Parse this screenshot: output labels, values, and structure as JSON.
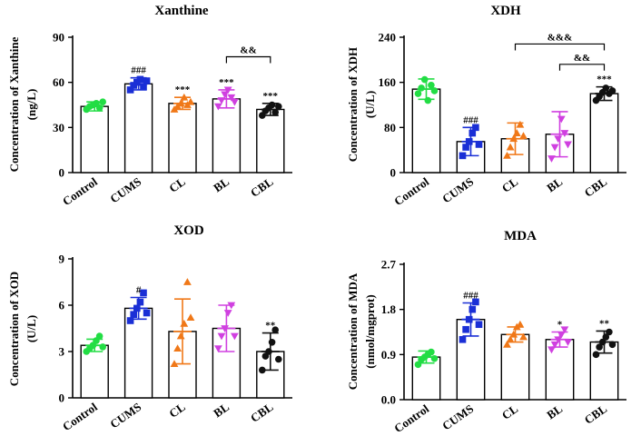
{
  "chart_data": [
    {
      "type": "bar",
      "title": "Xanthine",
      "ylabel_lines": [
        "Concentration of Xanthine",
        "(ng/L)"
      ],
      "categories": [
        "Control",
        "CUMS",
        "CL",
        "BL",
        "CBL"
      ],
      "ylim": [
        0,
        90
      ],
      "yticks": [
        0,
        30,
        60,
        90
      ],
      "ytick_labels": [
        "0",
        "30",
        "60",
        "90"
      ],
      "means": [
        44,
        59,
        46,
        49,
        42
      ],
      "sd": [
        3,
        4,
        4,
        6,
        4
      ],
      "points": [
        [
          42,
          44,
          45,
          46,
          43,
          47
        ],
        [
          55,
          58,
          60,
          62,
          57,
          61
        ],
        [
          42,
          44,
          46,
          50,
          45,
          47
        ],
        [
          44,
          48,
          52,
          55,
          50,
          47
        ],
        [
          38,
          41,
          43,
          45,
          40,
          44
        ]
      ],
      "point_markers": [
        "circle",
        "square",
        "triangle-up",
        "triangle-down",
        "circle"
      ],
      "significance": [
        "",
        "###",
        "***",
        "***",
        "***"
      ],
      "brackets": [
        {
          "from": 3,
          "to": 4,
          "value": 77,
          "label": "&&"
        }
      ]
    },
    {
      "type": "bar",
      "title": "XDH",
      "ylabel_lines": [
        "Concentration of XDH",
        "(U/L)"
      ],
      "categories": [
        "Control",
        "CUMS",
        "CL",
        "BL",
        "CBL"
      ],
      "ylim": [
        0,
        240
      ],
      "yticks": [
        0,
        80,
        160,
        240
      ],
      "ytick_labels": [
        "0",
        "80",
        "160",
        "240"
      ],
      "means": [
        148,
        55,
        60,
        68,
        140
      ],
      "sd": [
        18,
        25,
        28,
        40,
        12
      ],
      "points": [
        [
          140,
          150,
          165,
          128,
          155,
          145
        ],
        [
          30,
          45,
          55,
          70,
          80,
          50
        ],
        [
          30,
          45,
          60,
          70,
          85,
          65
        ],
        [
          25,
          45,
          60,
          95,
          70,
          50
        ],
        [
          128,
          135,
          142,
          150,
          140,
          145
        ]
      ],
      "point_markers": [
        "circle",
        "square",
        "triangle-up",
        "triangle-down",
        "circle"
      ],
      "significance": [
        "",
        "###",
        "",
        "",
        "***"
      ],
      "brackets": [
        {
          "from": 2,
          "to": 4,
          "value": 228,
          "label": "&&&"
        },
        {
          "from": 3,
          "to": 4,
          "value": 192,
          "label": "&&"
        }
      ]
    },
    {
      "type": "bar",
      "title": "XOD",
      "ylabel_lines": [
        "Concentration of XOD",
        "(U/L)"
      ],
      "categories": [
        "Control",
        "CUMS",
        "CL",
        "BL",
        "CBL"
      ],
      "ylim": [
        0,
        9
      ],
      "yticks": [
        0,
        3,
        6,
        9
      ],
      "ytick_labels": [
        "0",
        "3",
        "6",
        "9"
      ],
      "means": [
        3.4,
        5.8,
        4.3,
        4.5,
        3.0
      ],
      "sd": [
        0.4,
        0.7,
        2.1,
        1.5,
        1.2
      ],
      "points": [
        [
          3.0,
          3.2,
          3.4,
          3.7,
          4.0,
          3.3
        ],
        [
          5.0,
          5.4,
          5.8,
          6.2,
          6.8,
          5.5
        ],
        [
          2.2,
          3.2,
          4.0,
          4.8,
          7.5,
          5.2
        ],
        [
          3.2,
          4.0,
          4.5,
          5.5,
          6.0,
          4.0
        ],
        [
          1.8,
          2.7,
          3.0,
          3.6,
          4.4,
          2.5
        ]
      ],
      "point_markers": [
        "circle",
        "square",
        "triangle-up",
        "triangle-down",
        "circle"
      ],
      "significance": [
        "",
        "#",
        "",
        "",
        "**"
      ],
      "brackets": []
    },
    {
      "type": "bar",
      "title": "MDA",
      "ylabel_lines": [
        "Concentration of MDA",
        "(nmol/mgprot)"
      ],
      "categories": [
        "Control",
        "CUMS",
        "CL",
        "BL",
        "CBL"
      ],
      "ylim": [
        0,
        2.7
      ],
      "yticks": [
        0,
        0.9,
        1.8,
        2.7
      ],
      "ytick_labels": [
        "0.0",
        "0.9",
        "1.8",
        "2.7"
      ],
      "means": [
        0.85,
        1.6,
        1.3,
        1.2,
        1.15
      ],
      "sd": [
        0.12,
        0.33,
        0.15,
        0.15,
        0.22
      ],
      "points": [
        [
          0.7,
          0.8,
          0.85,
          0.9,
          0.95,
          0.82
        ],
        [
          1.2,
          1.4,
          1.6,
          1.8,
          1.95,
          1.5
        ],
        [
          1.1,
          1.2,
          1.3,
          1.45,
          1.5,
          1.25
        ],
        [
          1.0,
          1.1,
          1.2,
          1.3,
          1.4,
          1.15
        ],
        [
          0.9,
          1.05,
          1.15,
          1.25,
          1.35,
          1.1
        ]
      ],
      "point_markers": [
        "circle",
        "square",
        "triangle-up",
        "triangle-down",
        "circle"
      ],
      "significance": [
        "",
        "###",
        "",
        "*",
        "**"
      ],
      "brackets": []
    }
  ],
  "group_colors": [
    "#22dd44",
    "#1a2fd6",
    "#f07818",
    "#d040e0",
    "#111111"
  ]
}
